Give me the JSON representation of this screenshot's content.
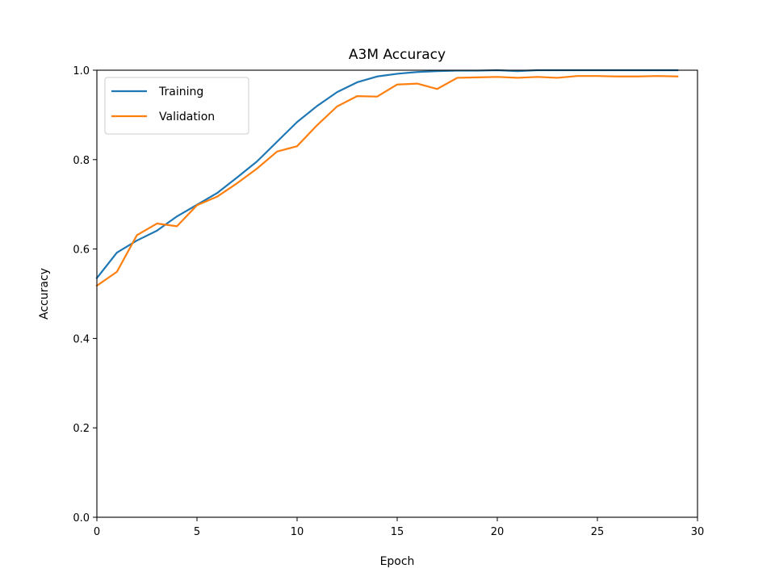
{
  "chart_data": {
    "type": "line",
    "title": "A3M Accuracy",
    "xlabel": "Epoch",
    "ylabel": "Accuracy",
    "xlim": [
      0,
      30
    ],
    "ylim": [
      0.0,
      1.0
    ],
    "xticks": [
      "0",
      "5",
      "10",
      "15",
      "20",
      "25",
      "30"
    ],
    "yticks": [
      "0.0",
      "0.2",
      "0.4",
      "0.6",
      "0.8",
      "1.0"
    ],
    "grid": false,
    "legend_position": "upper-left",
    "x": [
      0,
      1,
      2,
      3,
      4,
      5,
      6,
      7,
      8,
      9,
      10,
      11,
      12,
      13,
      14,
      15,
      16,
      17,
      18,
      19,
      20,
      21,
      22,
      23,
      24,
      25,
      26,
      27,
      28,
      29
    ],
    "series": [
      {
        "name": "Training",
        "color": "#1f77b4",
        "values": [
          0.535,
          0.592,
          0.619,
          0.641,
          0.673,
          0.699,
          0.725,
          0.76,
          0.796,
          0.84,
          0.884,
          0.92,
          0.951,
          0.973,
          0.986,
          0.992,
          0.996,
          0.998,
          0.999,
          0.999,
          1.0,
          0.998,
          1.0,
          1.0,
          1.0,
          1.0,
          1.0,
          1.0,
          1.0,
          1.0
        ]
      },
      {
        "name": "Validation",
        "color": "#ff7f0e",
        "values": [
          0.518,
          0.549,
          0.631,
          0.657,
          0.651,
          0.698,
          0.717,
          0.747,
          0.78,
          0.818,
          0.83,
          0.877,
          0.919,
          0.942,
          0.941,
          0.968,
          0.97,
          0.958,
          0.983,
          0.984,
          0.985,
          0.983,
          0.985,
          0.983,
          0.987,
          0.987,
          0.986,
          0.986,
          0.987,
          0.986
        ]
      }
    ]
  }
}
